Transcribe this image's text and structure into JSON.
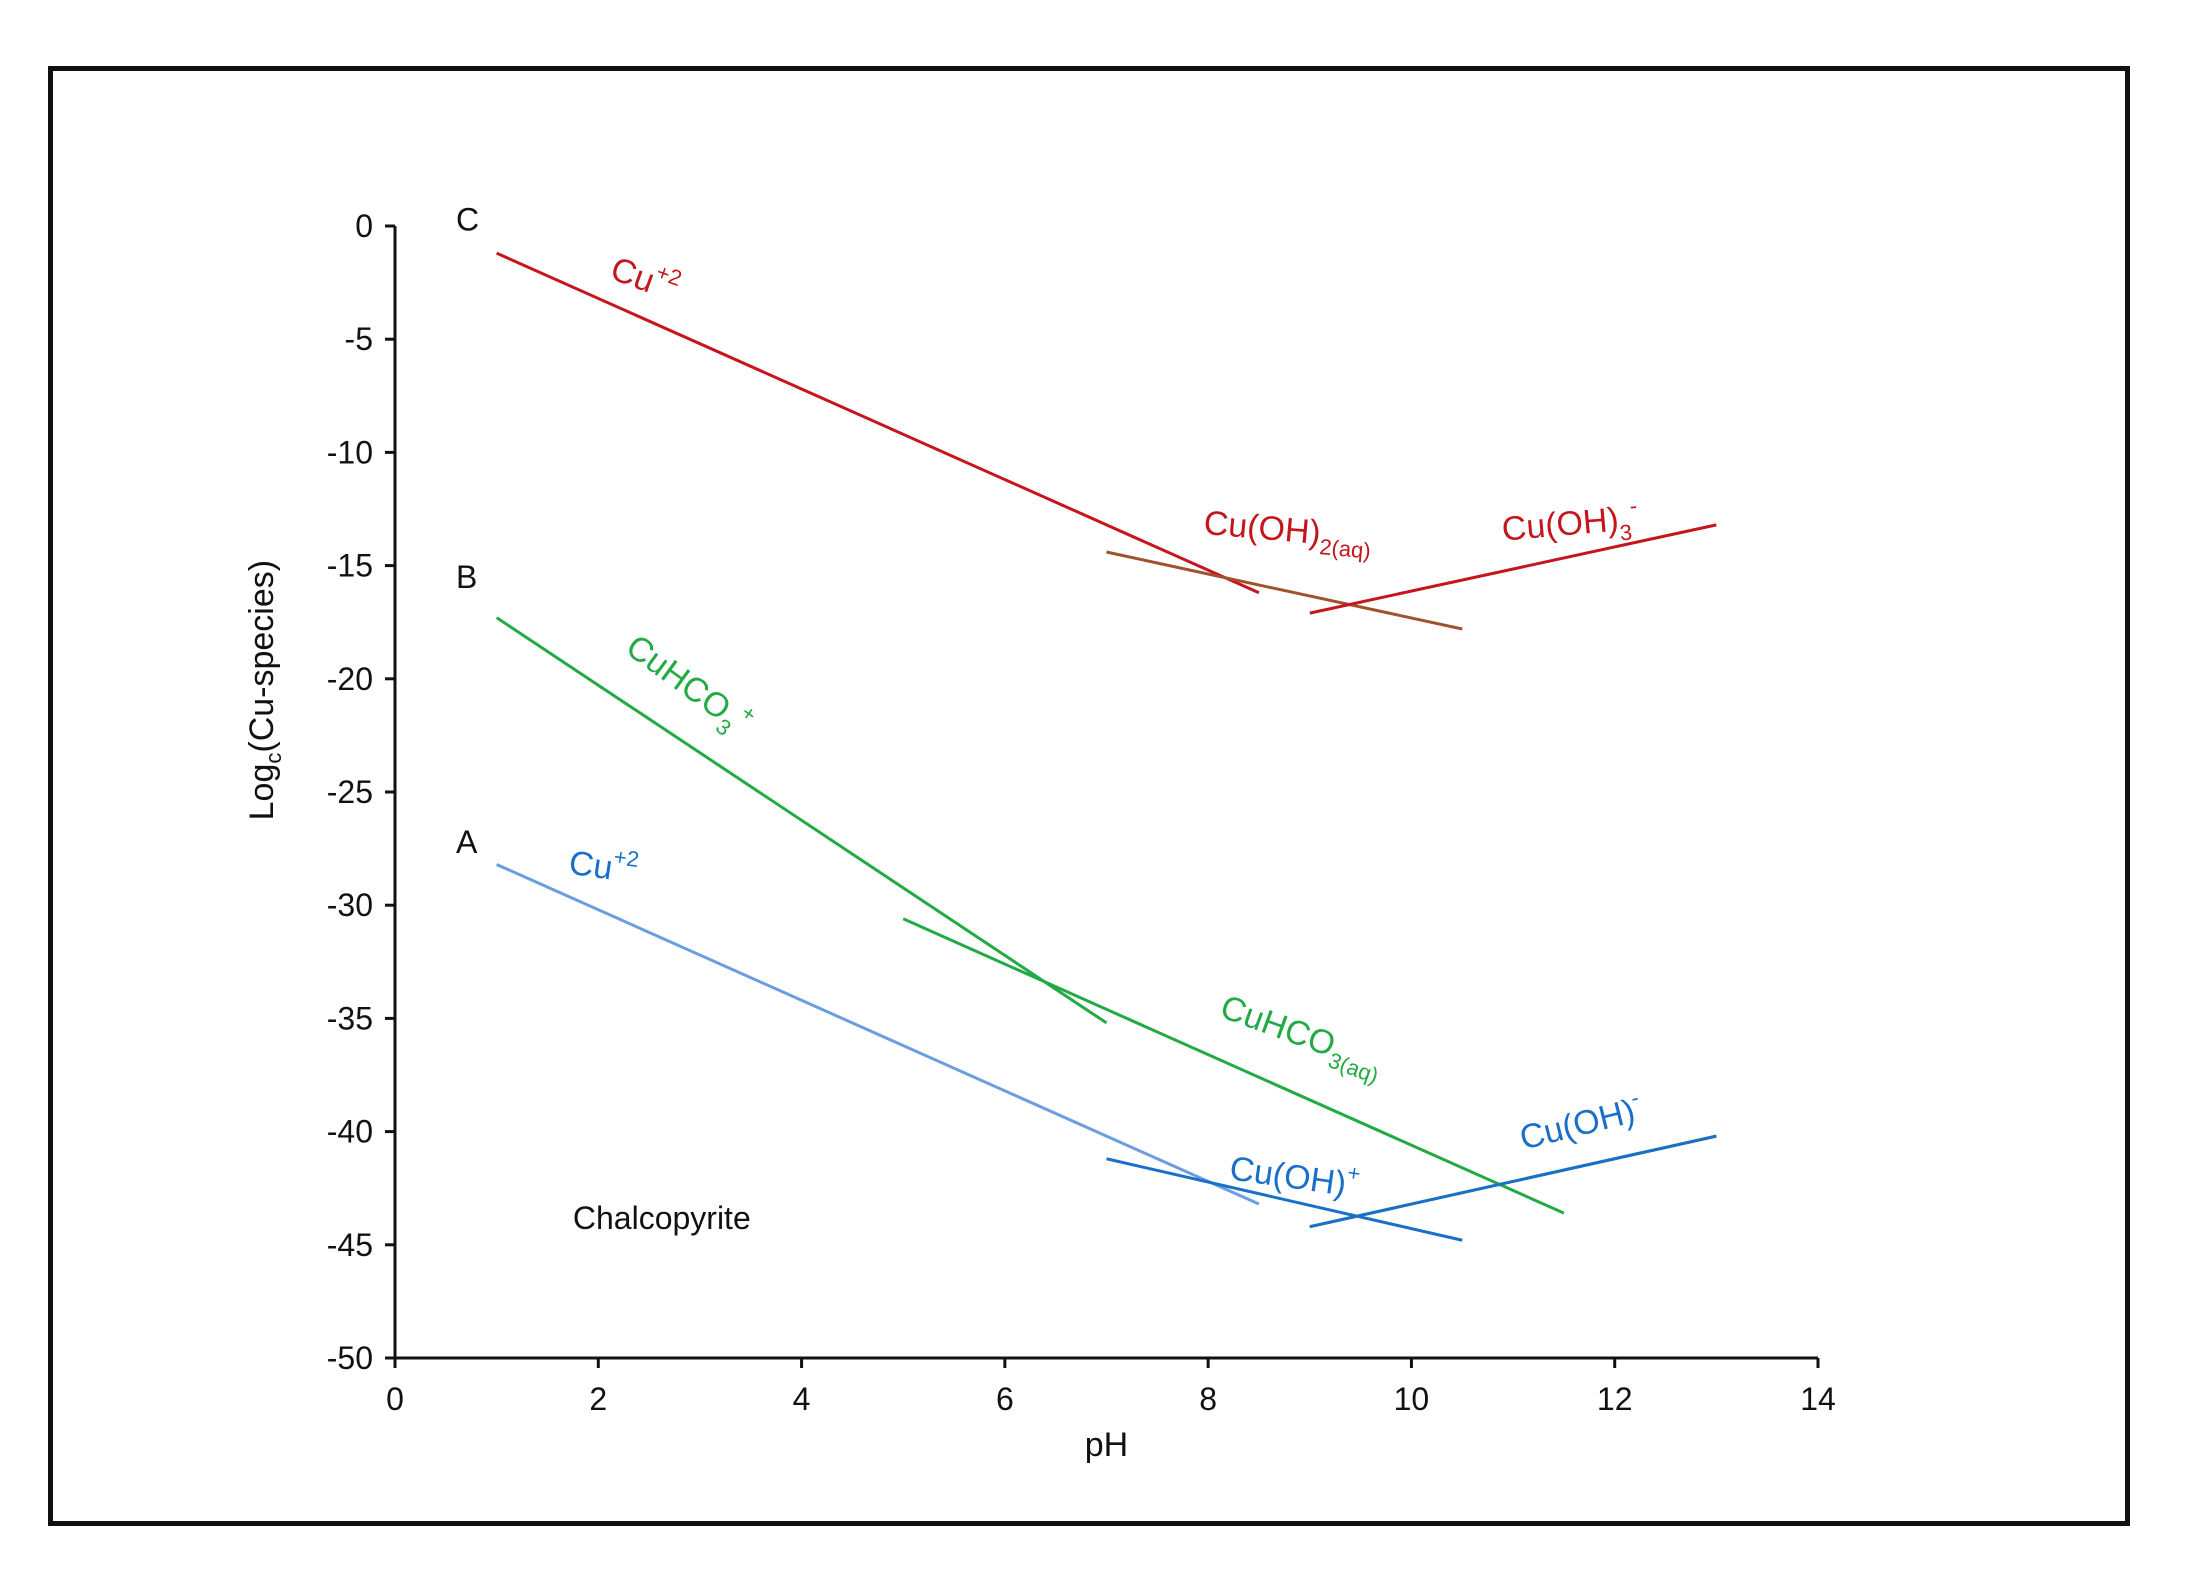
{
  "chart_data": {
    "type": "line",
    "xlabel": "pH",
    "ylabel": {
      "base": "Log",
      "subscript": "c",
      "rest": "(Cu-species)"
    },
    "xlim": [
      0,
      14
    ],
    "ylim": [
      -50,
      0
    ],
    "xticks": [
      0,
      2,
      4,
      6,
      8,
      10,
      12,
      14
    ],
    "yticks": [
      0,
      -5,
      -10,
      -15,
      -20,
      -25,
      -30,
      -35,
      -40,
      -45,
      -50
    ],
    "grid": false,
    "legend": "none",
    "annotation": "Chalcopyrite",
    "curve_labels": [
      {
        "text": "C",
        "x": 0.6,
        "y": -0.2
      },
      {
        "text": "B",
        "x": 0.6,
        "y": -16.0
      },
      {
        "text": "A",
        "x": 0.6,
        "y": -27.7
      }
    ],
    "series": [
      {
        "curve": "C",
        "color": "#c4161c",
        "x": [
          1,
          8.5
        ],
        "y": [
          -1.2,
          -16.2
        ]
      },
      {
        "curve": "C",
        "color": "#a0522d",
        "x": [
          7,
          10.5
        ],
        "y": [
          -14.4,
          -17.8
        ]
      },
      {
        "curve": "C",
        "color": "#c4161c",
        "x": [
          9,
          13
        ],
        "y": [
          -17.1,
          -13.2
        ]
      },
      {
        "curve": "B",
        "color": "#22aa44",
        "x": [
          1,
          7
        ],
        "y": [
          -17.3,
          -35.2
        ]
      },
      {
        "curve": "B",
        "color": "#22aa44",
        "x": [
          5,
          11.5
        ],
        "y": [
          -30.6,
          -43.6
        ]
      },
      {
        "curve": "B",
        "color": "#22aa44",
        "x": [
          9,
          13
        ],
        "y": [
          -44.2,
          -40.2
        ]
      },
      {
        "curve": "A",
        "color": "#6a9ee0",
        "x": [
          1,
          8.5
        ],
        "y": [
          -28.2,
          -43.2
        ]
      },
      {
        "curve": "A",
        "color": "#1a6fc9",
        "x": [
          7,
          10.5
        ],
        "y": [
          -41.2,
          -44.8
        ]
      },
      {
        "curve": "A",
        "color": "#1a6fc9",
        "x": [
          9,
          13
        ],
        "y": [
          -44.2,
          -40.2
        ]
      }
    ],
    "species_labels": [
      {
        "main": "Cu",
        "sup": "+2",
        "color": "#c4161c",
        "x": 2.1,
        "y": -2.3,
        "angle": 20
      },
      {
        "main": "Cu(OH)",
        "sub": "2(aq)",
        "color": "#c4161c",
        "x": 7.95,
        "y": -13.6,
        "angle": 5
      },
      {
        "main": "Cu(OH)",
        "sub": "3",
        "sup": "-",
        "color": "#c4161c",
        "x": 10.9,
        "y": -13.9,
        "angle": -5
      },
      {
        "main": "CuHCO",
        "sub": "3",
        "sup": "+",
        "color": "#22aa44",
        "x": 2.25,
        "y": -18.8,
        "angle": 36
      },
      {
        "main": "CuHCO",
        "sub": "3(aq)",
        "color": "#22aa44",
        "x": 8.1,
        "y": -34.9,
        "angle": 20
      },
      {
        "main": "Cu",
        "sup": "+2",
        "color": "#1a6fc9",
        "x": 1.7,
        "y": -28.6,
        "angle": 8
      },
      {
        "main": "Cu(OH)",
        "sup": "+",
        "color": "#1a6fc9",
        "x": 8.2,
        "y": -42.1,
        "angle": 8
      },
      {
        "main": "Cu(OH)",
        "sup": "-",
        "color": "#1a6fc9",
        "x": 11.1,
        "y": -40.8,
        "angle": -14
      }
    ]
  }
}
